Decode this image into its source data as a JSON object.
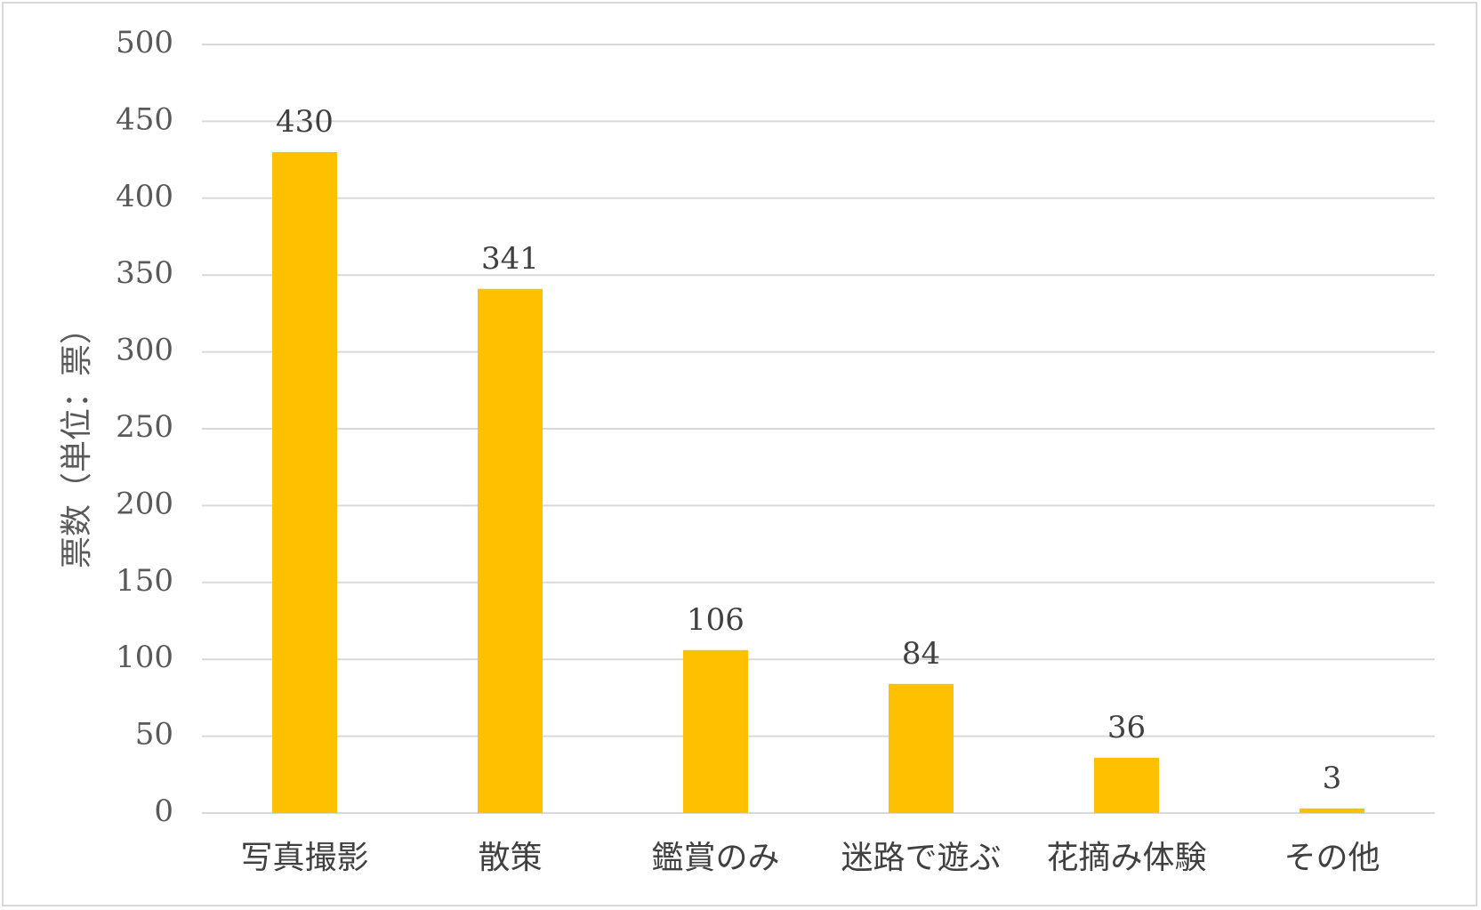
{
  "chart_data": {
    "type": "bar",
    "categories": [
      "写真撮影",
      "散策",
      "鑑賞のみ",
      "迷路で遊ぶ",
      "花摘み体験",
      "その他"
    ],
    "values": [
      430,
      341,
      106,
      84,
      36,
      3
    ],
    "data_labels": [
      "430",
      "341",
      "106",
      "84",
      "36",
      "3"
    ],
    "title": "",
    "xlabel": "",
    "ylabel": "票数（単位：票）",
    "ylim": [
      0,
      500
    ],
    "yticks": [
      0,
      50,
      100,
      150,
      200,
      250,
      300,
      350,
      400,
      450,
      500
    ],
    "ytick_labels": [
      "0",
      "50",
      "100",
      "150",
      "200",
      "250",
      "300",
      "350",
      "400",
      "450",
      "500"
    ],
    "grid": true,
    "legend": "none",
    "bar_color": "#FFC000",
    "grid_color": "#D9D9D9"
  }
}
